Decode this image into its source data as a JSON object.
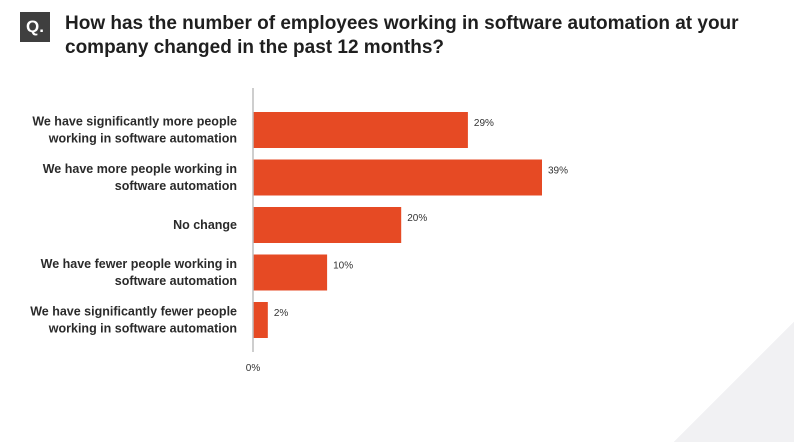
{
  "question": {
    "badge": "Q.",
    "text": "How has the number of employees working in software automation at your company changed in the past 12 months?"
  },
  "colors": {
    "bar": "#e64a24",
    "axis": "#bdbdbd"
  },
  "chart_data": {
    "type": "bar",
    "orientation": "horizontal",
    "categories": [
      [
        "We have significantly more people",
        "working in software automation"
      ],
      [
        "We have more people working in",
        "software automation"
      ],
      [
        "No change"
      ],
      [
        "We have fewer people working in",
        "software automation"
      ],
      [
        "We have significantly fewer people",
        "working in software automation"
      ]
    ],
    "values": [
      29,
      39,
      20,
      10,
      2
    ],
    "value_labels": [
      "29%",
      "39%",
      "20%",
      "10%",
      "2%"
    ],
    "x_tick_label": "0%",
    "xlim": [
      0,
      100
    ],
    "grid": false
  }
}
